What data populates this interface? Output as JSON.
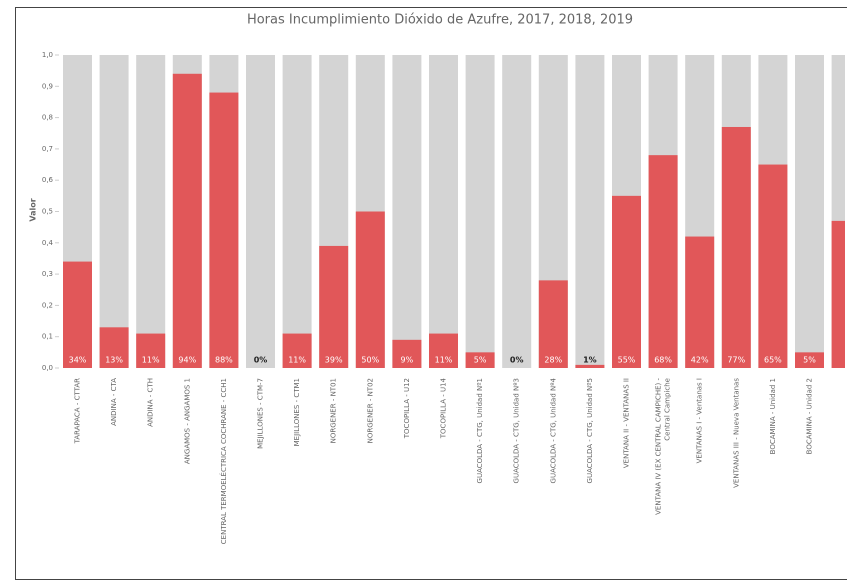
{
  "chart_data": {
    "type": "bar",
    "title": "Horas Incumplimiento Dióxido de Azufre, 2017, 2018, 2019",
    "y_label": "Valor",
    "categories": [
      "TARAPACA - CTTAR",
      "ANDINA - CTA",
      "ANDINA - CTH",
      "ANGAMOS - ANGAMOS 1",
      "CENTRAL TERMOELÉCTRICA COCHRANE - CCH1",
      "MEJILLONES - CTM-7",
      "MEJILLONES - CTM1",
      "NORGENER - NT01",
      "NORGENER - NT02",
      "TOCOPILLA - U12",
      "TOCOPILLA - U14",
      "GUACOLDA - CTG, Unidad Nº1",
      "GUACOLDA - CTG, Unidad Nº3",
      "GUACOLDA - CTG, Unidad Nº4",
      "GUACOLDA - CTG, Unidad Nº5",
      "VENTANA II - VENTANAS II",
      "VENTANA IV (EX CENTRAL CAMPICHE) - Central Campiche",
      "VENTANAS I - Ventanas I",
      "VENTANAS III - Nueva Ventanas",
      "BOCAMINA - Unidad 1",
      "BOCAMINA - Unidad 2",
      null
    ],
    "values": [
      0.34,
      0.13,
      0.11,
      0.94,
      0.88,
      0,
      0.11,
      0.39,
      0.5,
      0.09,
      0.11,
      0.05,
      0,
      0.28,
      0.01,
      0.55,
      0.68,
      0.42,
      0.77,
      0.65,
      0.05,
      0.47
    ],
    "value_labels": [
      "34%",
      "13%",
      "11%",
      "94%",
      "88%",
      "0%",
      "11%",
      "39%",
      "50%",
      "9%",
      "11%",
      "5%",
      "0%",
      "28%",
      "1%",
      "55%",
      "68%",
      "42%",
      "77%",
      "65%",
      "5%",
      null
    ],
    "color": "#e15759",
    "background_color": "#d4d4d4",
    "ylim": [
      0,
      1
    ],
    "yticks": [
      {
        "value": 0,
        "label": "0,0"
      },
      {
        "value": 0.1,
        "label": "0,1"
      },
      {
        "value": 0.2,
        "label": "0,2"
      },
      {
        "value": 0.3,
        "label": "0,3"
      },
      {
        "value": 0.4,
        "label": "0,4"
      },
      {
        "value": 0.5,
        "label": "0,5"
      },
      {
        "value": 0.6,
        "label": "0,6"
      },
      {
        "value": 0.7,
        "label": "0,7"
      },
      {
        "value": 0.8,
        "label": "0,8"
      },
      {
        "value": 0.9,
        "label": "0,9"
      },
      {
        "value": 1,
        "label": "1,0"
      }
    ]
  }
}
